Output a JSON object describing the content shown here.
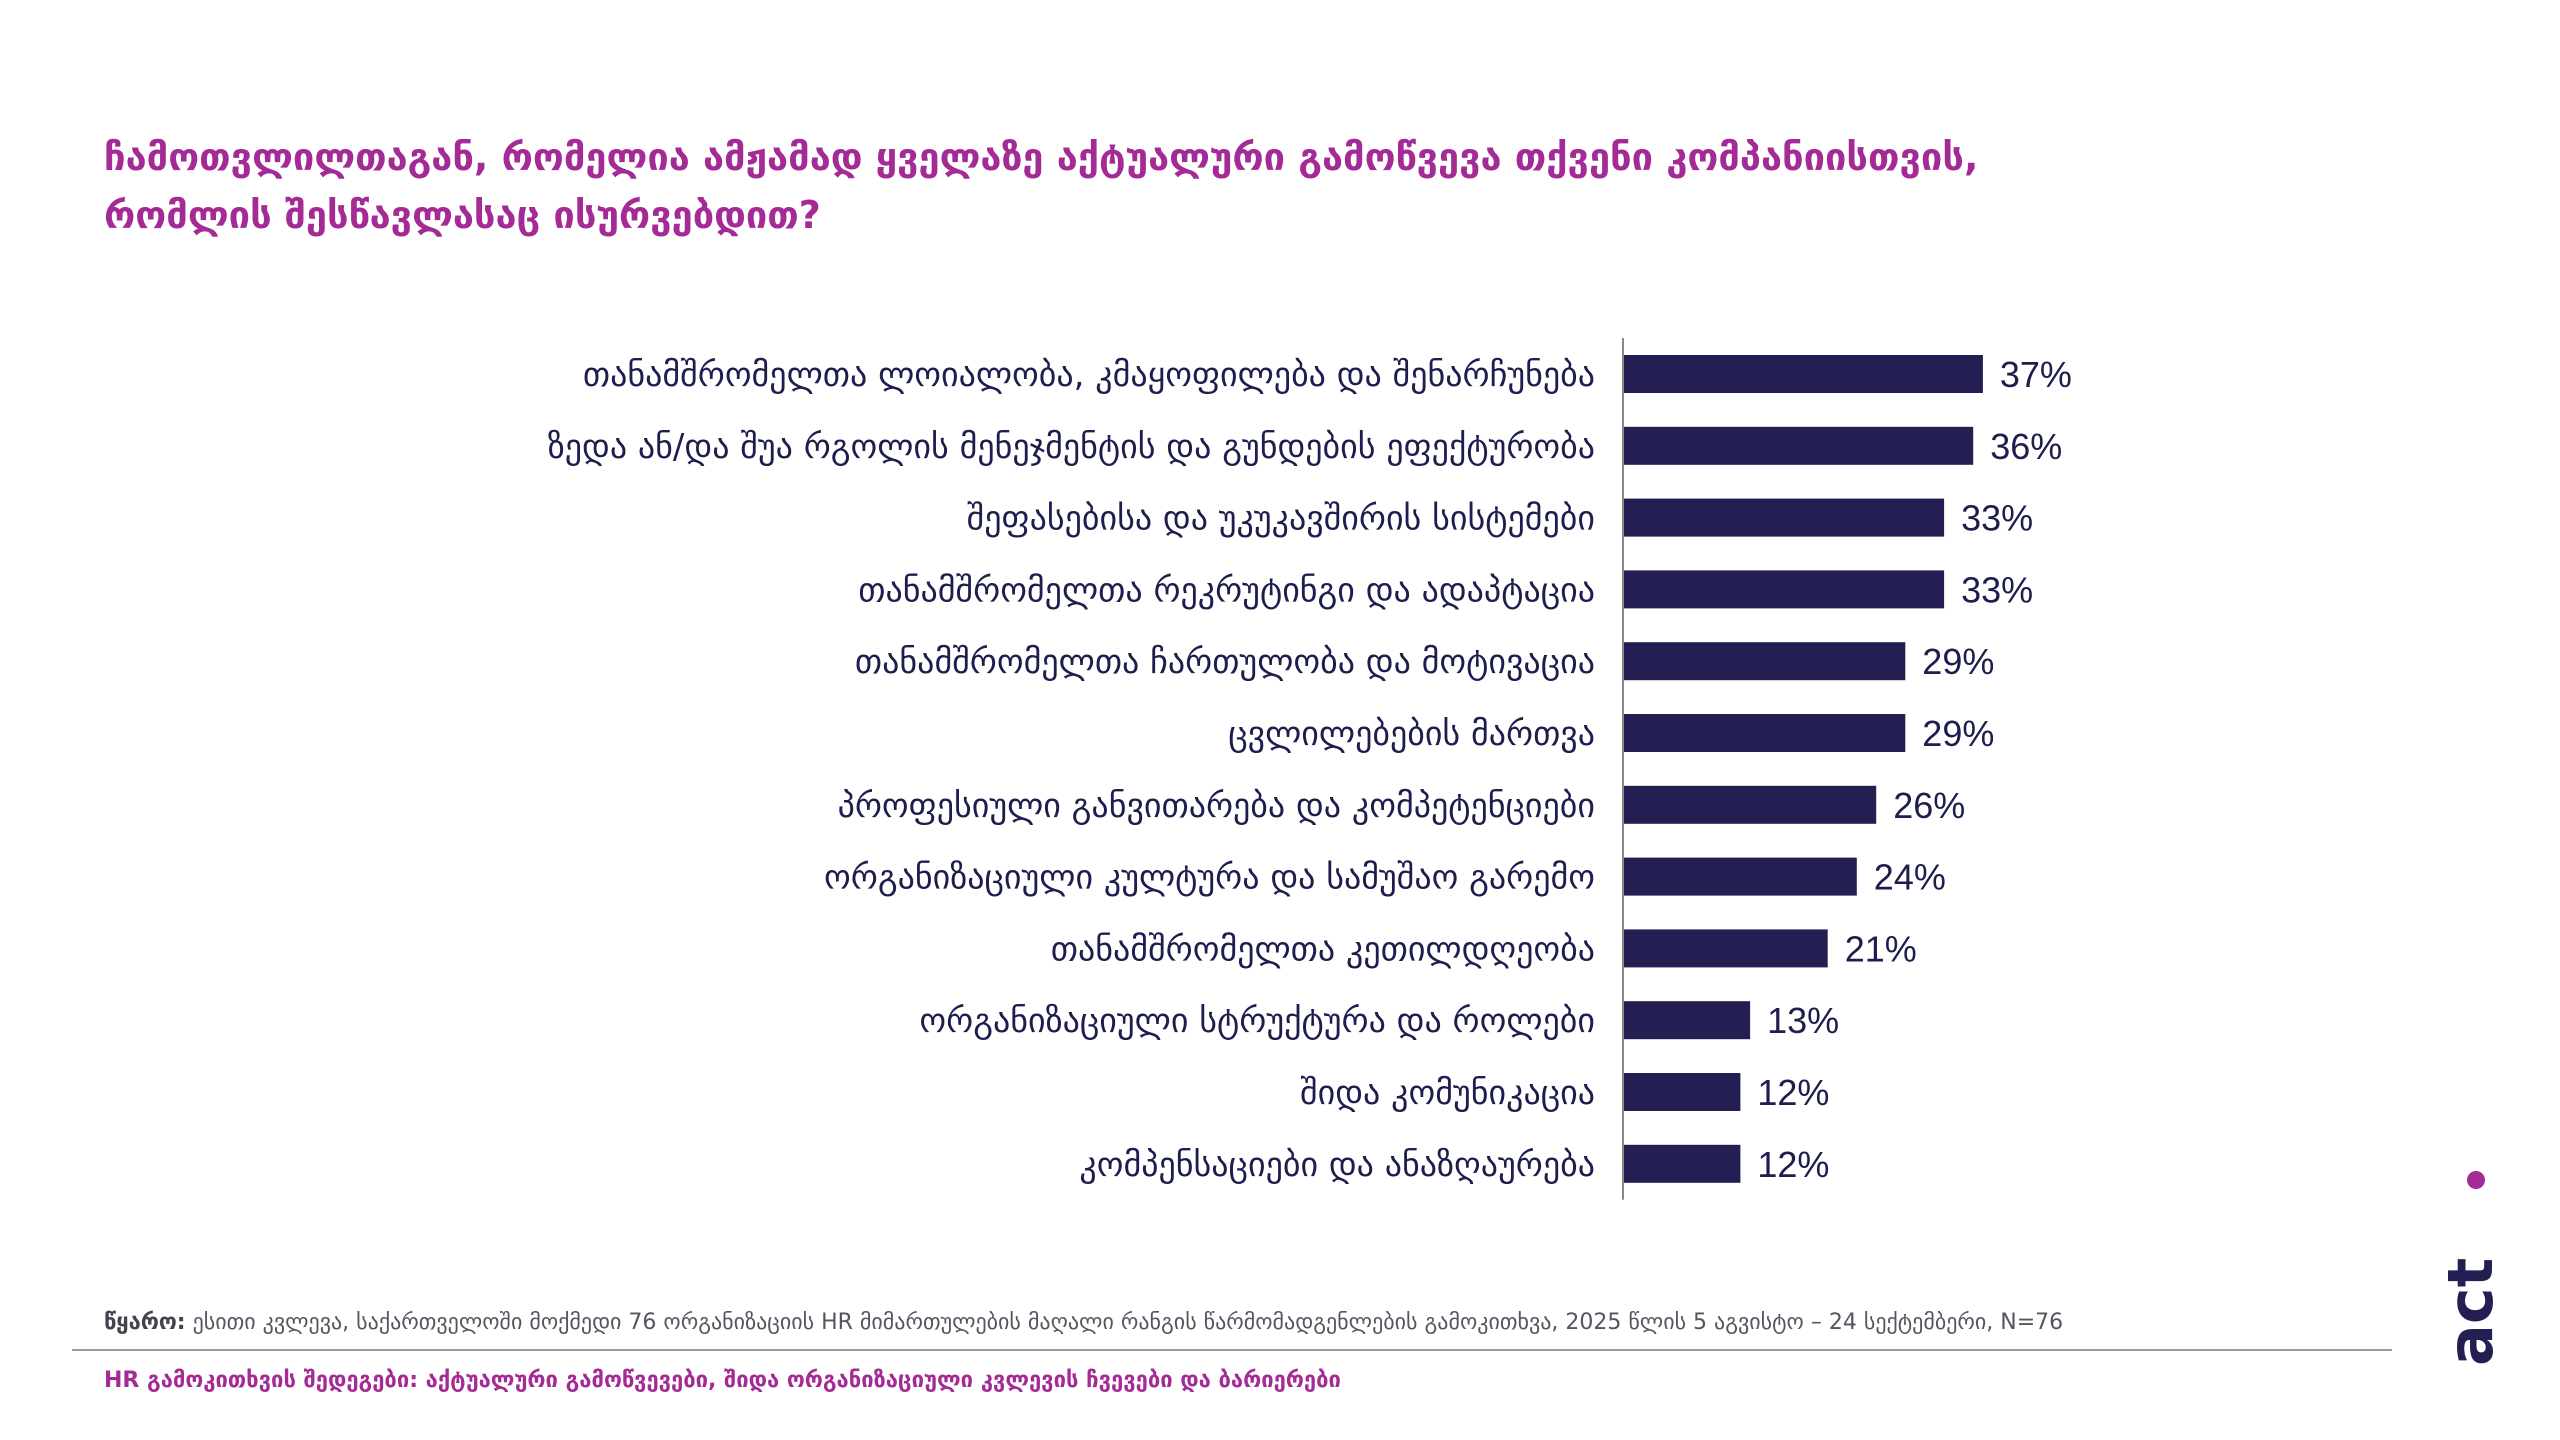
{
  "title": {
    "line1": "ჩამოთვლილთაგან, რომელია ამჟამად ყველაზე აქტუალური გამოწვევა თქვენი კომპანიისთვის,",
    "line2": "რომლის შესწავლასაც ისურვებდით?"
  },
  "chart_data": {
    "type": "bar",
    "orientation": "horizontal",
    "title": "ჩამოთვლილთაგან, რომელია ამჟამად ყველაზე აქტუალური გამოწვევა თქვენი კომპანიისთვის, რომლის შესწავლასაც ისურვებდით?",
    "categories": [
      "თანამშრომელთა ლოიალობა, კმაყოფილება და შენარჩუნება",
      "ზედა ან/და შუა რგოლის მენეჯმენტის და გუნდების ეფექტურობა",
      "შეფასებისა და უკუკავშირის სისტემები",
      "თანამშრომელთა რეკრუტინგი და ადაპტაცია",
      "თანამშრომელთა ჩართულობა და მოტივაცია",
      "ცვლილებების მართვა",
      "პროფესიული განვითარება და კომპეტენციები",
      "ორგანიზაციული კულტურა და სამუშაო გარემო",
      "თანამშრომელთა კეთილდღეობა",
      "ორგანიზაციული სტრუქტურა და როლები",
      "შიდა კომუნიკაცია",
      "კომპენსაციები და ანაზღაურება"
    ],
    "values": [
      37,
      36,
      33,
      33,
      29,
      29,
      26,
      24,
      21,
      13,
      12,
      12
    ],
    "value_labels": [
      "37%",
      "36%",
      "33%",
      "33%",
      "29%",
      "29%",
      "26%",
      "24%",
      "21%",
      "13%",
      "12%",
      "12%"
    ],
    "unit": "%",
    "xlim": [
      0,
      100
    ],
    "bar_color": "#231f52",
    "label_color": "#1e1e4e",
    "axis_color": "#888888",
    "xlabel": "",
    "ylabel": "",
    "grid": false,
    "legend": "none"
  },
  "source": {
    "label": "წყარო:",
    "text": " ესითი კვლევა, საქართველოში მოქმედი 76 ორგანიზაციის HR მიმართულების მაღალი რანგის წარმომადგენლების გამოკითხვა, 2025 წლის 5 აგვისტო – 24 სექტემბერი, N=76"
  },
  "footer": {
    "text": "HR გამოკითხვის შედეგები: აქტუალური გამოწვევები, შიდა ორგანიზაციული კვლევის ჩვევები და ბარიერები"
  },
  "logo": {
    "text": "act",
    "color": "#231f52",
    "dot_color": "#a42a95"
  },
  "colors": {
    "accent": "#a42a95",
    "bar": "#231f52",
    "text": "#1e1e4e"
  }
}
